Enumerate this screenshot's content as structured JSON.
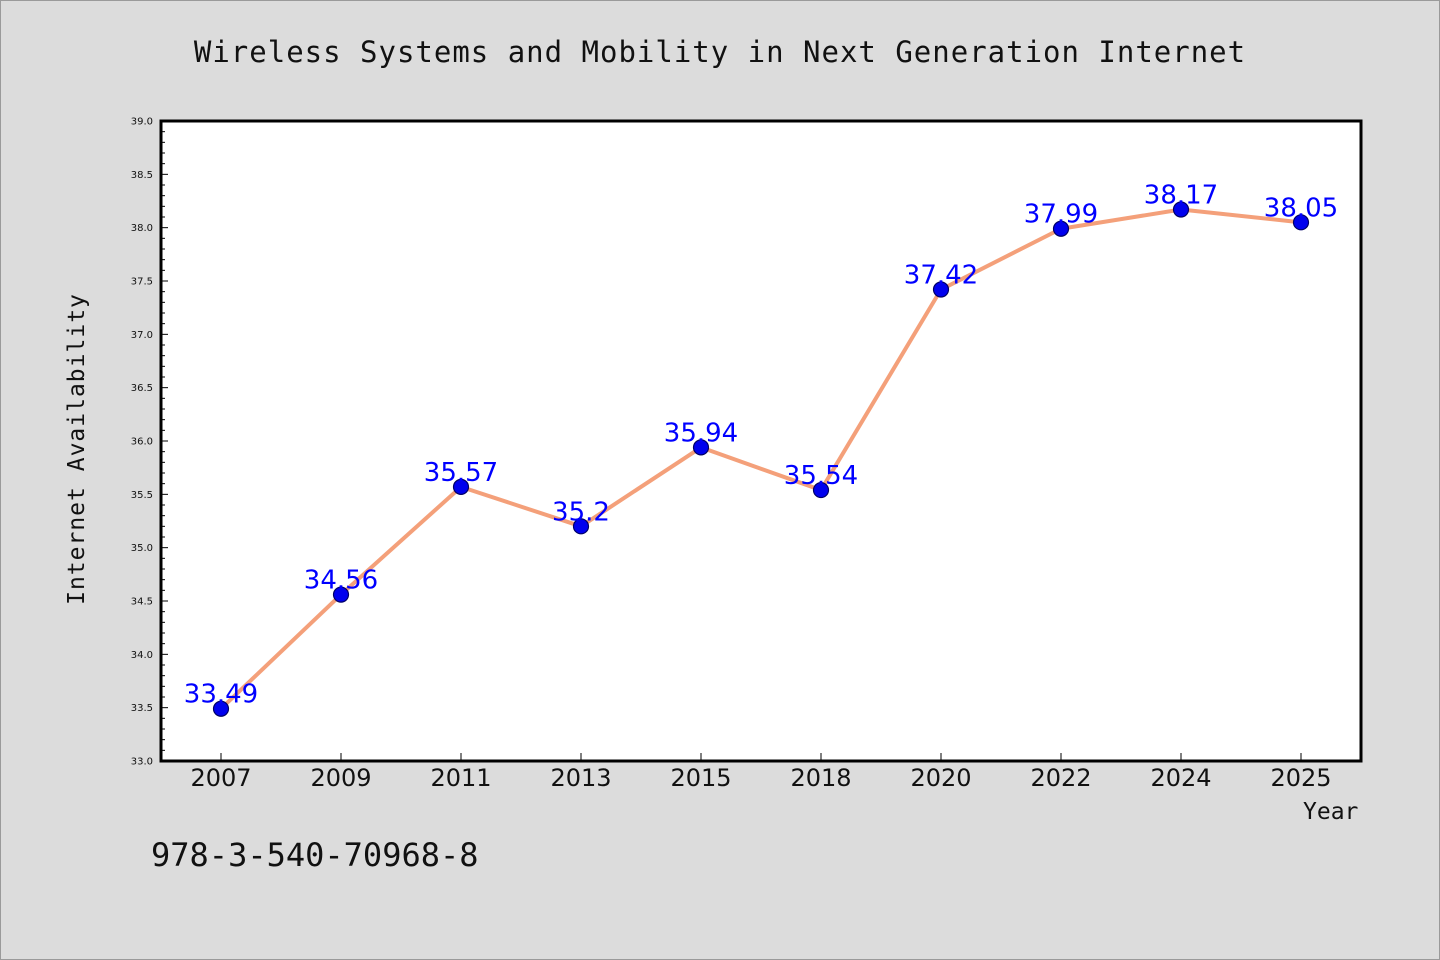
{
  "chart_data": {
    "type": "line",
    "title": "Wireless Systems and Mobility in Next Generation Internet",
    "xlabel": "Year",
    "ylabel": "Internet Availability",
    "categories": [
      "2007",
      "2009",
      "2011",
      "2013",
      "2015",
      "2018",
      "2020",
      "2022",
      "2024",
      "2025"
    ],
    "series": [
      {
        "values": [
          33.49,
          34.56,
          35.57,
          35.2,
          35.94,
          35.54,
          37.42,
          37.99,
          38.17,
          38.05
        ]
      }
    ],
    "data_labels": [
      "33.49",
      "34.56",
      "35.57",
      "35.2",
      "35.94",
      "35.54",
      "37.42",
      "37.99",
      "38.17",
      "38.05"
    ],
    "ylim": [
      33.0,
      39.0
    ],
    "y_ticks": [
      "33.0",
      "33.5",
      "34.0",
      "34.5",
      "35.0",
      "35.5",
      "36.0",
      "36.5",
      "37.0",
      "37.5",
      "38.0",
      "38.5",
      "39.0"
    ],
    "grid": false,
    "legend": "none",
    "colors": {
      "line": "#f4a07a",
      "marker": "#0000ee",
      "marker_edge": "#000066",
      "data_label": "#0000ff",
      "plot_background": "#ffffff",
      "figure_background": "#dcdcdc"
    }
  },
  "footer": {
    "isbn": "978-3-540-70968-8"
  }
}
